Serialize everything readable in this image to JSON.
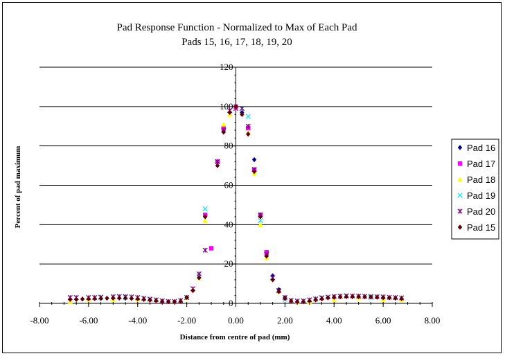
{
  "chart_data": {
    "type": "scatter",
    "title": "Pad Response Function - Normalized to Max of Each Pad",
    "subtitle": "Pads 15, 16, 17, 18, 19, 20",
    "xlabel": "Distance from centre of pad (mm)",
    "ylabel": "Percent of pad maximum",
    "xlim": [
      -8,
      8
    ],
    "ylim": [
      0,
      120
    ],
    "x_ticks": [
      "-8.00",
      "-6.00",
      "-4.00",
      "-2.00",
      "0.00",
      "2.00",
      "4.00",
      "6.00",
      "8.00"
    ],
    "y_ticks": [
      "0",
      "20",
      "40",
      "60",
      "80",
      "100",
      "120"
    ],
    "grid": "horizontal",
    "legend_position": "right",
    "series": [
      {
        "name": "Pad 16",
        "color": "#00008B",
        "marker": "diamond",
        "x": [
          -0.5,
          0.25,
          0.75,
          1.0,
          1.25,
          1.5,
          1.75,
          2.0
        ],
        "y": [
          88,
          97,
          73,
          45,
          25,
          14,
          7,
          3
        ]
      },
      {
        "name": "Pad 17",
        "color": "#FF00FF",
        "marker": "square",
        "x": [
          -1.25,
          -1.0,
          -0.75,
          -0.5,
          0.0,
          0.5,
          0.75,
          1.0,
          1.25
        ],
        "y": [
          45,
          28,
          72,
          89,
          100,
          89,
          68,
          45,
          26
        ]
      },
      {
        "name": "Pad 18",
        "color": "#FFFF00",
        "marker": "triangle",
        "x": [
          -6.75,
          -6.0,
          -5.0,
          -4.0,
          -2.0,
          -1.5,
          -1.25,
          -0.5,
          -0.25,
          0.5,
          0.75,
          1.0,
          1.25,
          1.75,
          2.5,
          3.0,
          4.0,
          5.0,
          6.0,
          6.75
        ],
        "y": [
          1,
          2,
          2,
          2,
          3,
          13,
          42,
          91,
          96,
          87,
          66,
          40,
          23,
          6,
          1,
          1,
          2,
          3,
          2,
          2
        ]
      },
      {
        "name": "Pad 19",
        "color": "#00E5E5",
        "marker": "x",
        "x": [
          -5.5,
          -4.5,
          -3.5,
          -2.0,
          -1.5,
          -1.25,
          -0.75,
          -0.25,
          0.25,
          0.5,
          1.0,
          1.5,
          2.0,
          3.5,
          4.5,
          5.5,
          6.5
        ],
        "y": [
          3,
          3,
          2,
          3,
          14,
          48,
          72,
          98,
          99,
          95,
          42,
          13,
          2,
          3,
          4,
          3,
          3
        ]
      },
      {
        "name": "Pad 20",
        "color": "#7B007B",
        "marker": "star",
        "x": [
          -6.75,
          -6.5,
          -6.0,
          -5.75,
          -5.5,
          -5.0,
          -4.75,
          -4.5,
          -4.25,
          -4.0,
          -3.75,
          -3.5,
          -3.25,
          -3.0,
          -2.75,
          -2.5,
          -2.25,
          -2.0,
          -1.75,
          -1.5,
          -1.25,
          -0.75,
          -0.5,
          -0.25,
          0.0,
          0.25,
          0.5,
          0.75,
          1.0,
          1.25,
          1.5,
          1.75,
          2.0,
          2.25,
          2.5,
          2.75,
          3.0,
          3.25,
          3.5,
          3.75,
          4.0,
          4.25,
          4.5,
          4.75,
          5.0,
          5.25,
          5.5,
          5.75,
          6.0,
          6.25,
          6.5,
          6.75
        ],
        "y": [
          3,
          3,
          3,
          3,
          3.2,
          3.4,
          3.5,
          3.5,
          3.3,
          3,
          2.6,
          2.2,
          1.8,
          1.3,
          1,
          1,
          1.5,
          3,
          7.5,
          15,
          27,
          72,
          88,
          98,
          99,
          99,
          90,
          68,
          45,
          25,
          13,
          6.5,
          3,
          1.5,
          1.2,
          1.3,
          1.8,
          2.3,
          2.8,
          3.2,
          3.5,
          3.7,
          3.8,
          3.8,
          3.7,
          3.6,
          3.5,
          3.4,
          3.3,
          3.1,
          3,
          2.8
        ]
      },
      {
        "name": "Pad 15",
        "color": "#5C0000",
        "marker": "diamond",
        "x": [
          -6.75,
          -6.5,
          -6.25,
          -6.0,
          -5.75,
          -5.5,
          -5.25,
          -5.0,
          -4.75,
          -4.5,
          -4.25,
          -4.0,
          -3.75,
          -3.5,
          -3.25,
          -3.0,
          -2.75,
          -2.5,
          -2.25,
          -2.0,
          -1.75,
          -1.5,
          -1.25,
          -0.75,
          -0.5,
          -0.25,
          0.0,
          0.25,
          0.5,
          0.75,
          1.0,
          1.25,
          1.5,
          1.75,
          2.0,
          2.25,
          2.5,
          2.75,
          3.0,
          3.25,
          3.5,
          3.75,
          4.0,
          4.25,
          4.5,
          4.75,
          5.0,
          5.25,
          5.5,
          5.75,
          6.0,
          6.25,
          6.5,
          6.75
        ],
        "y": [
          2,
          2,
          2.2,
          2.3,
          2.4,
          2.5,
          2.6,
          2.7,
          2.7,
          2.6,
          2.5,
          2.3,
          2,
          1.7,
          1.4,
          1,
          0.8,
          0.8,
          1,
          3,
          6.5,
          13,
          44,
          70,
          87,
          97,
          100,
          96,
          86,
          67,
          44,
          24,
          12,
          6,
          2.5,
          1.2,
          0.8,
          0.8,
          1.2,
          1.8,
          2.3,
          2.8,
          3.1,
          3.3,
          3.4,
          3.4,
          3.4,
          3.3,
          3.2,
          3.1,
          2.9,
          2.8,
          2.6,
          2.4
        ]
      }
    ]
  }
}
